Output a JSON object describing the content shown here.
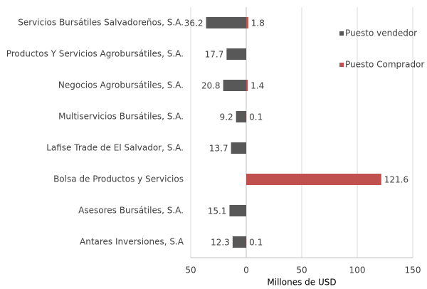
{
  "chart_data": {
    "type": "bar",
    "orientation": "horizontal",
    "x_label": "Millones de USD",
    "categories": [
      "Servicios Bursátiles Salvadoreños, S.A.",
      "Productos Y Servicios Agrobursátiles, S.A.",
      "Negocios Agrobursátiles, S.A.",
      "Multiservicios Bursátiles, S.A.",
      "Lafise Trade de El Salvador, S.A.",
      "Bolsa de Productos y Servicios",
      "Asesores Bursátiles, S.A.",
      "Antares Inversiones, S.A"
    ],
    "series": [
      {
        "name": "Puesto vendedor",
        "color": "#585858",
        "values": [
          -36.2,
          -17.7,
          -20.8,
          -9.2,
          -13.7,
          null,
          -15.1,
          -12.3
        ],
        "value_labels": [
          "36.2",
          "17.7",
          "20.8",
          "9.2",
          "13.7",
          null,
          "15.1",
          "12.3"
        ]
      },
      {
        "name": "Puesto Comprador",
        "color": "#c0504d",
        "values": [
          1.8,
          null,
          1.4,
          0.1,
          null,
          121.6,
          null,
          0.1
        ],
        "value_labels": [
          "1.8",
          null,
          "1.4",
          "0.1",
          null,
          "121.6",
          null,
          "0.1"
        ]
      }
    ],
    "xlim": [
      -50,
      150
    ],
    "xticks": [
      {
        "value": -50,
        "label": "50"
      },
      0,
      50,
      100,
      150
    ],
    "grid": true,
    "legend": "upper right"
  }
}
